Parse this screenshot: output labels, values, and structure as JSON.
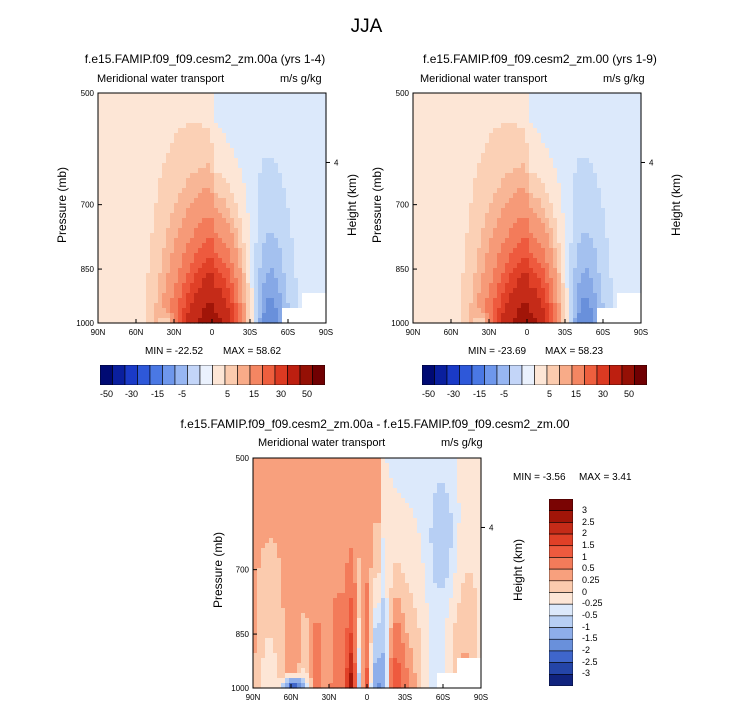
{
  "main_title": "JJA",
  "palette_pos": [
    "#fde6d6",
    "#fbd0b5",
    "#f8b696",
    "#f69a78",
    "#f37b5a",
    "#ee5a3e",
    "#e04027",
    "#c52b18",
    "#a11508",
    "#7a0403"
  ],
  "palette_neg": [
    "#dce9fb",
    "#c2d8f6",
    "#a4c1ef",
    "#86a8e6",
    "#6990db",
    "#4d76d0",
    "#355ec3",
    "#2445a8",
    "#1a3186",
    "#0d1a6a"
  ],
  "chart_data": [
    {
      "id": "panel1",
      "type": "heatmap",
      "title": "f.e15.FAMIP.f09_f09.cesm2_zm.00a (yrs 1-4)",
      "subtitle_left": "Meridional water transport",
      "subtitle_right": "m/s g/kg",
      "ylabel": "Pressure (mb)",
      "y2label": "Height (km)",
      "x_ticks": [
        "90N",
        "60N",
        "30N",
        "0",
        "30S",
        "60S",
        "90S"
      ],
      "x_range": [
        90,
        -90
      ],
      "y_ticks": [
        "500",
        "700",
        "850",
        "1000"
      ],
      "y_range_mb": [
        500,
        1000
      ],
      "y2_ticks": [
        "4"
      ],
      "min_label": "MIN = -22.52",
      "max_label": "MAX = 58.62",
      "min": -22.52,
      "max": 58.62
    },
    {
      "id": "panel2",
      "type": "heatmap",
      "title": "f.e15.FAMIP.f09_f09.cesm2_zm.00 (yrs 1-9)",
      "subtitle_left": "Meridional water transport",
      "subtitle_right": "m/s g/kg",
      "ylabel": "Pressure (mb)",
      "y2label": "Height (km)",
      "x_ticks": [
        "90N",
        "60N",
        "30N",
        "0",
        "30S",
        "60S",
        "90S"
      ],
      "x_range": [
        90,
        -90
      ],
      "y_ticks": [
        "500",
        "700",
        "850",
        "1000"
      ],
      "y_range_mb": [
        500,
        1000
      ],
      "y2_ticks": [
        "4"
      ],
      "min_label": "MIN = -23.69",
      "max_label": "MAX = 58.23",
      "min": -23.69,
      "max": 58.23
    },
    {
      "id": "panel3",
      "type": "heatmap",
      "title": "f.e15.FAMIP.f09_f09.cesm2_zm.00a - f.e15.FAMIP.f09_f09.cesm2_zm.00",
      "subtitle_left": "Meridional water transport",
      "subtitle_right": "m/s g/kg",
      "ylabel": "Pressure (mb)",
      "y2label": "Height (km)",
      "x_ticks": [
        "90N",
        "60N",
        "30N",
        "0",
        "30S",
        "60S",
        "90S"
      ],
      "x_range": [
        90,
        -90
      ],
      "y_ticks": [
        "500",
        "700",
        "850",
        "1000"
      ],
      "y_range_mb": [
        500,
        1000
      ],
      "y2_ticks": [
        "4"
      ],
      "min_label": "MIN =  -3.56",
      "max_label": "MAX =   3.41",
      "min": -3.56,
      "max": 3.41
    }
  ],
  "colorbar_top": {
    "labels": [
      "-50",
      "-30",
      "-15",
      "-5",
      "5",
      "15",
      "30",
      "50"
    ],
    "colors": [
      "#000a73",
      "#0a1f9e",
      "#1a3ac7",
      "#2e58d9",
      "#4a78e4",
      "#6e97ec",
      "#97b6f2",
      "#c3d5f8",
      "#eaf1fd",
      "#fde6d6",
      "#fbcbae",
      "#f8ab88",
      "#f48662",
      "#ee5f3e",
      "#dc3a22",
      "#bd1f10",
      "#951005",
      "#700002"
    ]
  },
  "colorbar_diff": {
    "labels": [
      "3",
      "2.5",
      "2",
      "1.5",
      "1",
      "0.5",
      "0.25",
      "0",
      "-0.25",
      "-0.5",
      "-1",
      "-1.5",
      "-2",
      "-2.5",
      "-3"
    ],
    "colors": [
      "#7a0403",
      "#a11508",
      "#c52b18",
      "#e04027",
      "#ee5a3e",
      "#f37b5a",
      "#f8a07d",
      "#fbcbae",
      "#fde6d6",
      "#dce9fb",
      "#b7cff4",
      "#8eaeea",
      "#6990db",
      "#3f66cb",
      "#2445a8",
      "#10237e"
    ]
  }
}
